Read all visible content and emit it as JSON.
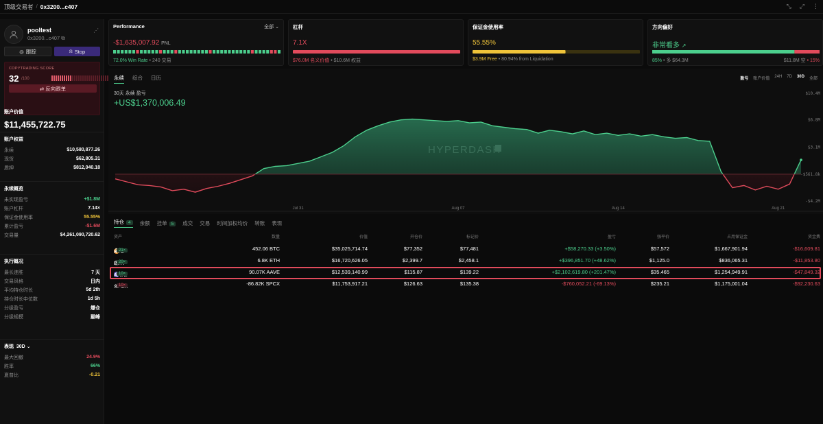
{
  "header": {
    "breadcrumb": "顶级交易者",
    "address": "0x3200...c407"
  },
  "profile": {
    "name": "pooltest",
    "address": "0x3200...c407",
    "follow_label": "跟踪",
    "stop_label": "Stop"
  },
  "score": {
    "label": "COPYTRADING SCORE",
    "value": "32",
    "max": "/100",
    "fraction": 0.32,
    "reverse_label": "反向跟单"
  },
  "account": {
    "value_title": "账户价值",
    "value": "$11,455,722.75",
    "equity_title": "账户权益",
    "equity": [
      {
        "k": "永续",
        "v": "$10,580,877.26"
      },
      {
        "k": "现货",
        "v": "$62,805.31"
      },
      {
        "k": "质押",
        "v": "$812,040.18"
      }
    ]
  },
  "perp": {
    "title": "永续概览",
    "rows": [
      {
        "k": "未实现盈亏",
        "v": "+$1.8M",
        "c": "pos"
      },
      {
        "k": "账户杠杆",
        "v": "7.14×",
        "c": ""
      },
      {
        "k": "保证金使用率",
        "v": "55.55%",
        "c": "yel"
      },
      {
        "k": "累计盈亏",
        "v": "-$1.6M",
        "c": "neg"
      },
      {
        "k": "交易量",
        "v": "$4,261,090,720.62",
        "c": ""
      }
    ]
  },
  "exec": {
    "title": "执行概况",
    "rows": [
      {
        "k": "最长连胜",
        "v": "7 天"
      },
      {
        "k": "交易风格",
        "v": "日内"
      },
      {
        "k": "平均持仓时长",
        "v": "5d 2th"
      },
      {
        "k": "持仓时长中位数",
        "v": "1d 5h"
      },
      {
        "k": "分级盈亏",
        "v": "爆仓"
      },
      {
        "k": "分级规模",
        "v": "巅峰"
      }
    ]
  },
  "perf_side": {
    "title": "表现",
    "period": "30D",
    "rows": [
      {
        "k": "最大回撤",
        "v": "24.9%",
        "c": "neg"
      },
      {
        "k": "胜率",
        "v": "66%",
        "c": "pos"
      },
      {
        "k": "夏普比",
        "v": "-0.21",
        "c": "yel"
      }
    ]
  },
  "cards": {
    "performance": {
      "title": "Performance",
      "dropdown": "全部",
      "pnl": "-$1,635,007.92",
      "pnl_unit": "PNL",
      "win_rate": "72.0% Win Rate",
      "trades": "• 240 交易",
      "win_fraction": 0.72
    },
    "leverage": {
      "title": "杠杆",
      "value": "7.1X",
      "sub_a": "$76.0M 名义价值",
      "sub_b": "• $10.6M 权益"
    },
    "margin": {
      "title": "保证金使用率",
      "value": "55.55%",
      "fraction": 0.5555,
      "sub_a": "$3.9M Free",
      "sub_b": "• 80.94% from Liquidation"
    },
    "direction": {
      "title": "方向偏好",
      "value": "非常看多",
      "long_pct": "85%",
      "long_label": "• 多 $64.3M",
      "short_label": "$11.8M 空",
      "short_pct": "• 15%",
      "long_fraction": 0.85
    }
  },
  "chart_panel": {
    "tabs": [
      "永续",
      "综合",
      "日历"
    ],
    "right_options": [
      "盈亏",
      "账户价值",
      "24H",
      "7D",
      "30D",
      "全部"
    ],
    "label": "30天 永续 盈亏",
    "value": "+US$1,370,006.49",
    "watermark": "HYPERDASH"
  },
  "chart_data": {
    "type": "area",
    "title": "30天 永续 盈亏",
    "x_ticks": [
      "Jul 31",
      "Aug 07",
      "Aug 14",
      "Aug 21"
    ],
    "y_ticks": [
      "$10.4M",
      "$6.8M",
      "$3.1M",
      "-$561.8k",
      "-$4.2M"
    ],
    "ylim": [
      -4.2,
      10.4
    ],
    "baseline": -0.5618,
    "x_range": [
      0,
      30
    ],
    "x_tick_days": [
      8,
      15,
      22,
      29
    ],
    "x": [
      0,
      0.5,
      1,
      1.5,
      2,
      2.5,
      3,
      3.5,
      4,
      4.5,
      5,
      5.5,
      6,
      6.5,
      7,
      7.5,
      8,
      8.5,
      9,
      9.5,
      10,
      10.5,
      11,
      11.5,
      12,
      12.5,
      13,
      13.5,
      14,
      14.5,
      15,
      15.5,
      16,
      16.5,
      17,
      17.5,
      18,
      18.5,
      19,
      19.5,
      20,
      20.5,
      21,
      21.5,
      22,
      22.5,
      23,
      23.5,
      24,
      24.5,
      25,
      25.5,
      26,
      26.5,
      27,
      27.5,
      28,
      28.5,
      29,
      29.5,
      30
    ],
    "values": [
      -1.2,
      -1.6,
      -2.0,
      -2.1,
      -2.3,
      -2.8,
      -2.6,
      -3.0,
      -2.5,
      -2.2,
      -1.8,
      -1.3,
      -0.8,
      0.2,
      0.5,
      0.6,
      0.9,
      1.2,
      1.8,
      2.4,
      3.3,
      4.5,
      5.4,
      6.0,
      6.5,
      6.8,
      6.9,
      6.8,
      6.7,
      6.6,
      6.7,
      6.4,
      6.5,
      6.0,
      5.8,
      5.6,
      5.5,
      5.0,
      5.4,
      5.2,
      4.9,
      5.3,
      4.8,
      5.0,
      4.7,
      4.9,
      4.6,
      4.8,
      4.5,
      4.3,
      4.4,
      4.0,
      3.9,
      -0.2,
      -2.4,
      -2.1,
      -2.7,
      -2.2,
      -2.6,
      -1.9,
      1.37
    ],
    "series_colors": {
      "positive": "#4ccf8d",
      "negative": "#e24b5c"
    }
  },
  "positions": {
    "tabs": [
      {
        "label": "持仓",
        "badge": "4"
      },
      {
        "label": "余额"
      },
      {
        "label": "挂单",
        "badge": "5"
      },
      {
        "label": "成交"
      },
      {
        "label": "交易"
      },
      {
        "label": "时间加权均价"
      },
      {
        "label": "转账"
      },
      {
        "label": "表现"
      }
    ],
    "headers": [
      "资产",
      "数量",
      "价值",
      "开仓价",
      "标记价",
      "盈亏",
      "强平价",
      "占用保证金",
      "资金费"
    ],
    "rows": [
      {
        "asset": "BTC",
        "lev": "21×",
        "lev_c": "g",
        "icon": "₿",
        "icon_bg": "#e8922f",
        "qty": "452.06 BTC",
        "value": "$35,025,714.74",
        "entry": "$77,352",
        "mark": "$77,481",
        "pnl": "+$58,270.33 (+3.50%)",
        "pnl_c": "pos",
        "liq": "$57,572",
        "margin": "$1,667,901.94",
        "funding": "-$16,609.81"
      },
      {
        "asset": "ETH",
        "lev": "20×",
        "lev_c": "g",
        "icon": "♦",
        "icon_bg": "#3f3f3f",
        "qty": "6.8K ETH",
        "value": "$16,720,626.05",
        "entry": "$2,399.7",
        "mark": "$2,458.1",
        "pnl": "+$396,851.70 (+48.62%)",
        "pnl_c": "pos",
        "liq": "$1,125.0",
        "margin": "$836,065.31",
        "funding": "-$11,853.80"
      },
      {
        "asset": "AAVE",
        "lev": "10×",
        "lev_c": "g",
        "icon": "A",
        "icon_bg": "#7b6ee0",
        "qty": "90.07K AAVE",
        "value": "$12,539,140.99",
        "entry": "$115.87",
        "mark": "$139.22",
        "pnl": "+$2,102,619.80 (+201.47%)",
        "pnl_c": "pos",
        "liq": "$35.465",
        "margin": "$1,254,949.91",
        "funding": "-$47,849.32"
      },
      {
        "asset": "SPCX",
        "lev": "10×",
        "lev_c": "r",
        "icon": "✕",
        "icon_bg": "#0e0e0e",
        "qty": "-86.82K SPCX",
        "value": "$11,753,917.21",
        "entry": "$126.63",
        "mark": "$135.38",
        "pnl": "-$760,052.21 (-69.13%)",
        "pnl_c": "neg",
        "liq": "$235.21",
        "margin": "$1,175,001.04",
        "funding": "-$92,230.63"
      }
    ]
  }
}
